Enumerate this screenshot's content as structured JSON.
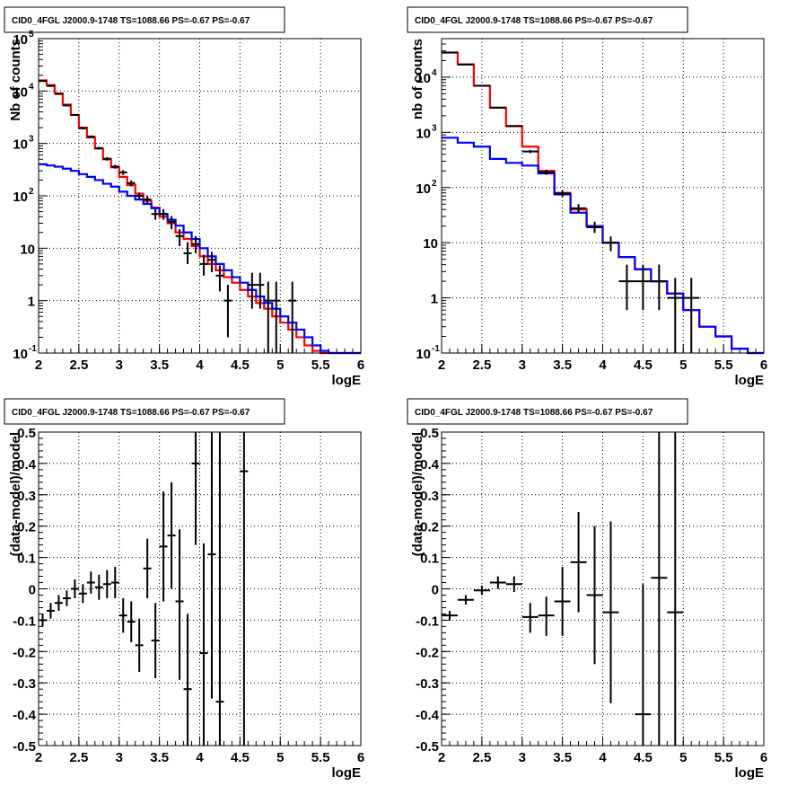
{
  "chart_data": [
    {
      "type": "line",
      "title": "CID0_4FGL J2000.9-1748 TS=1088.66 PS=-0.67 PS=-0.67",
      "xlabel": "logE",
      "ylabel": "Nb of counts",
      "xlim": [
        2,
        6
      ],
      "ylim": [
        0.1,
        100000
      ],
      "ylog": true,
      "grid": true,
      "xticks": [
        "2",
        "2.5",
        "3",
        "3.5",
        "4",
        "4.5",
        "5",
        "5.5",
        "6"
      ],
      "yticks": [
        {
          "base": "10",
          "exp": "-1"
        },
        {
          "base": "1",
          "exp": ""
        },
        {
          "base": "10",
          "exp": ""
        },
        {
          "base": "10",
          "exp": "2"
        },
        {
          "base": "10",
          "exp": "3"
        },
        {
          "base": "10",
          "exp": "4"
        },
        {
          "base": "10",
          "exp": "5"
        }
      ],
      "bin_edges": [
        2.0,
        2.1,
        2.2,
        2.3,
        2.4,
        2.5,
        2.6,
        2.7,
        2.8,
        2.9,
        3.0,
        3.1,
        3.2,
        3.3,
        3.4,
        3.5,
        3.6,
        3.7,
        3.8,
        3.9,
        4.0,
        4.1,
        4.2,
        4.3,
        4.4,
        4.5,
        4.6,
        4.7,
        4.8,
        4.9,
        5.0,
        5.1,
        5.2,
        5.3,
        5.4,
        5.5,
        5.6,
        5.7,
        5.8,
        5.9,
        6.0
      ],
      "series": [
        {
          "color": "#ff0000",
          "values": [
            16000,
            13000,
            9000,
            5500,
            3500,
            2000,
            1300,
            800,
            500,
            350,
            230,
            160,
            110,
            80,
            60,
            40,
            30,
            20,
            15,
            11,
            7,
            5,
            3.8,
            2.8,
            2.2,
            1.6,
            1.2,
            0.9,
            0.7,
            0.5,
            0.38,
            0.28,
            0.2,
            0.14,
            0.11,
            0.1,
            0.1,
            0.1,
            0.1,
            0.1
          ]
        },
        {
          "color": "#0000ff",
          "values": [
            400,
            380,
            360,
            330,
            300,
            260,
            230,
            200,
            170,
            150,
            120,
            100,
            85,
            70,
            58,
            45,
            35,
            27,
            20,
            15,
            10,
            7,
            5,
            3.8,
            2.8,
            2.2,
            1.6,
            1.2,
            0.9,
            0.7,
            0.5,
            0.38,
            0.28,
            0.2,
            0.14,
            0.11,
            0.1,
            0.1,
            0.1,
            0.1
          ]
        }
      ],
      "points": [
        {
          "x": 2.05,
          "y": 15500,
          "ylo": 15200,
          "yhi": 15800
        },
        {
          "x": 2.15,
          "y": 12500,
          "ylo": 12200,
          "yhi": 12800
        },
        {
          "x": 2.25,
          "y": 8800,
          "ylo": 8600,
          "yhi": 9000
        },
        {
          "x": 2.35,
          "y": 5300,
          "ylo": 5150,
          "yhi": 5450
        },
        {
          "x": 2.45,
          "y": 3500,
          "ylo": 3380,
          "yhi": 3620
        },
        {
          "x": 2.55,
          "y": 1950,
          "ylo": 1860,
          "yhi": 2040
        },
        {
          "x": 2.65,
          "y": 1350,
          "ylo": 1280,
          "yhi": 1420
        },
        {
          "x": 2.75,
          "y": 810,
          "ylo": 760,
          "yhi": 860
        },
        {
          "x": 2.85,
          "y": 510,
          "ylo": 470,
          "yhi": 550
        },
        {
          "x": 2.95,
          "y": 360,
          "ylo": 330,
          "yhi": 390
        },
        {
          "x": 3.05,
          "y": 280,
          "ylo": 250,
          "yhi": 310
        },
        {
          "x": 3.15,
          "y": 175,
          "ylo": 152,
          "yhi": 198
        },
        {
          "x": 3.25,
          "y": 100,
          "ylo": 84,
          "yhi": 116
        },
        {
          "x": 3.35,
          "y": 85,
          "ylo": 70,
          "yhi": 100
        },
        {
          "x": 3.45,
          "y": 45,
          "ylo": 35,
          "yhi": 56
        },
        {
          "x": 3.55,
          "y": 45,
          "ylo": 35,
          "yhi": 56
        },
        {
          "x": 3.65,
          "y": 32,
          "ylo": 23,
          "yhi": 41
        },
        {
          "x": 3.75,
          "y": 17,
          "ylo": 11,
          "yhi": 23
        },
        {
          "x": 3.85,
          "y": 8,
          "ylo": 5,
          "yhi": 13
        },
        {
          "x": 3.95,
          "y": 12,
          "ylo": 8,
          "yhi": 17
        },
        {
          "x": 4.05,
          "y": 5,
          "ylo": 3,
          "yhi": 7.5
        },
        {
          "x": 4.15,
          "y": 6,
          "ylo": 3.5,
          "yhi": 8.5
        },
        {
          "x": 4.25,
          "y": 3,
          "ylo": 1.5,
          "yhi": 4.7
        },
        {
          "x": 4.35,
          "y": 1,
          "ylo": 0.2,
          "yhi": 2
        },
        {
          "x": 4.65,
          "y": 2,
          "ylo": 0.7,
          "yhi": 3.4
        },
        {
          "x": 4.75,
          "y": 2,
          "ylo": 0.7,
          "yhi": 3.4
        },
        {
          "x": 4.85,
          "y": 1,
          "ylo": 0.1,
          "yhi": 2.3
        },
        {
          "x": 4.95,
          "y": 1,
          "ylo": 0.1,
          "yhi": 2.3
        },
        {
          "x": 5.15,
          "y": 1,
          "ylo": 0.1,
          "yhi": 2.3
        }
      ],
      "point_xerr": 0.05
    },
    {
      "type": "line",
      "title": "CID0_4FGL J2000.9-1748 TS=1088.66 PS=-0.67 PS=-0.67",
      "xlabel": "logE",
      "ylabel": "nb of counts",
      "xlim": [
        2,
        6
      ],
      "ylim": [
        0.1,
        50000
      ],
      "ylog": true,
      "grid": true,
      "xticks": [
        "2",
        "2.5",
        "3",
        "3.5",
        "4",
        "4.5",
        "5",
        "5.5",
        "6"
      ],
      "yticks": [
        {
          "base": "10",
          "exp": "-1"
        },
        {
          "base": "1",
          "exp": ""
        },
        {
          "base": "10",
          "exp": ""
        },
        {
          "base": "10",
          "exp": "2"
        },
        {
          "base": "10",
          "exp": "3"
        },
        {
          "base": "10",
          "exp": "4"
        }
      ],
      "bin_edges": [
        2.0,
        2.2,
        2.4,
        2.6,
        2.8,
        3.0,
        3.2,
        3.4,
        3.6,
        3.8,
        4.0,
        4.2,
        4.4,
        4.6,
        4.8,
        5.0,
        5.2,
        5.4,
        5.6,
        5.8,
        6.0
      ],
      "series": [
        {
          "color": "#ff0000",
          "values": [
            28000,
            17000,
            7000,
            2800,
            1300,
            550,
            200,
            80,
            40,
            20,
            10,
            5.5,
            3.3,
            2,
            1.2,
            0.6,
            0.3,
            0.2,
            0.12,
            0.1
          ]
        },
        {
          "color": "#0000ff",
          "values": [
            800,
            650,
            550,
            330,
            280,
            250,
            180,
            75,
            35,
            20,
            10,
            5.5,
            3.3,
            2,
            1.2,
            0.6,
            0.3,
            0.2,
            0.12,
            0.1
          ]
        }
      ],
      "points": [
        {
          "x": 2.1,
          "y": 28000,
          "ylo": 27500,
          "yhi": 28500
        },
        {
          "x": 2.3,
          "y": 17000,
          "ylo": 16500,
          "yhi": 17500
        },
        {
          "x": 2.5,
          "y": 7000,
          "ylo": 6800,
          "yhi": 7200
        },
        {
          "x": 2.7,
          "y": 2800,
          "ylo": 2700,
          "yhi": 2900
        },
        {
          "x": 2.9,
          "y": 1300,
          "ylo": 1250,
          "yhi": 1350
        },
        {
          "x": 3.1,
          "y": 450,
          "ylo": 420,
          "yhi": 480
        },
        {
          "x": 3.3,
          "y": 190,
          "ylo": 170,
          "yhi": 210
        },
        {
          "x": 3.5,
          "y": 78,
          "ylo": 68,
          "yhi": 88
        },
        {
          "x": 3.7,
          "y": 42,
          "ylo": 35,
          "yhi": 50
        },
        {
          "x": 3.9,
          "y": 19,
          "ylo": 15,
          "yhi": 24
        },
        {
          "x": 4.1,
          "y": 10,
          "ylo": 7,
          "yhi": 13
        },
        {
          "x": 4.3,
          "y": 2,
          "ylo": 0.6,
          "yhi": 4
        },
        {
          "x": 4.5,
          "y": 2,
          "ylo": 0.6,
          "yhi": 4
        },
        {
          "x": 4.7,
          "y": 2,
          "ylo": 0.6,
          "yhi": 4
        },
        {
          "x": 4.9,
          "y": 1,
          "ylo": 0.1,
          "yhi": 2.3
        },
        {
          "x": 5.1,
          "y": 1,
          "ylo": 0.1,
          "yhi": 2.3
        }
      ],
      "point_xerr": 0.1
    },
    {
      "type": "scatter",
      "title": "CID0_4FGL J2000.9-1748 TS=1088.66 PS=-0.67 PS=-0.67",
      "xlabel": "logE",
      "ylabel": "(data-model)/model",
      "xlim": [
        2,
        6
      ],
      "ylim": [
        -0.5,
        0.5
      ],
      "ylog": false,
      "grid": true,
      "xticks": [
        "2",
        "2.5",
        "3",
        "3.5",
        "4",
        "4.5",
        "5",
        "5.5",
        "6"
      ],
      "yticks": [
        "-0.5",
        "-0.4",
        "-0.3",
        "-0.2",
        "-0.1",
        "0",
        "0.1",
        "0.2",
        "0.3",
        "0.4",
        "0.5"
      ],
      "points": [
        {
          "x": 2.05,
          "y": -0.1,
          "ylo": -0.12,
          "yhi": -0.08
        },
        {
          "x": 2.15,
          "y": -0.07,
          "ylo": -0.095,
          "yhi": -0.045
        },
        {
          "x": 2.25,
          "y": -0.045,
          "ylo": -0.07,
          "yhi": -0.02
        },
        {
          "x": 2.35,
          "y": -0.03,
          "ylo": -0.055,
          "yhi": -0.005
        },
        {
          "x": 2.45,
          "y": 0.0,
          "ylo": -0.03,
          "yhi": 0.03
        },
        {
          "x": 2.55,
          "y": -0.015,
          "ylo": -0.045,
          "yhi": 0.015
        },
        {
          "x": 2.65,
          "y": 0.02,
          "ylo": -0.015,
          "yhi": 0.055
        },
        {
          "x": 2.75,
          "y": 0.005,
          "ylo": -0.035,
          "yhi": 0.045
        },
        {
          "x": 2.85,
          "y": 0.015,
          "ylo": -0.03,
          "yhi": 0.06
        },
        {
          "x": 2.95,
          "y": 0.02,
          "ylo": -0.03,
          "yhi": 0.07
        },
        {
          "x": 3.05,
          "y": -0.085,
          "ylo": -0.14,
          "yhi": -0.03
        },
        {
          "x": 3.15,
          "y": -0.105,
          "ylo": -0.17,
          "yhi": -0.04
        },
        {
          "x": 3.25,
          "y": -0.18,
          "ylo": -0.265,
          "yhi": -0.095
        },
        {
          "x": 3.35,
          "y": 0.065,
          "ylo": -0.03,
          "yhi": 0.16
        },
        {
          "x": 3.45,
          "y": -0.165,
          "ylo": -0.285,
          "yhi": -0.045
        },
        {
          "x": 3.55,
          "y": 0.135,
          "ylo": -0.04,
          "yhi": 0.31
        },
        {
          "x": 3.65,
          "y": 0.17,
          "ylo": 0.0,
          "yhi": 0.34
        },
        {
          "x": 3.75,
          "y": -0.04,
          "ylo": -0.29,
          "yhi": 0.19
        },
        {
          "x": 3.85,
          "y": -0.32,
          "ylo": -0.5,
          "yhi": -0.08
        },
        {
          "x": 3.95,
          "y": 0.4,
          "ylo": 0.14,
          "yhi": 0.5
        },
        {
          "x": 4.05,
          "y": -0.205,
          "ylo": -0.5,
          "yhi": 0.145
        },
        {
          "x": 4.15,
          "y": 0.11,
          "ylo": -0.35,
          "yhi": 0.5
        },
        {
          "x": 4.25,
          "y": -0.36,
          "ylo": -0.5,
          "yhi": 0.5
        },
        {
          "x": 4.55,
          "y": 0.375,
          "ylo": -0.5,
          "yhi": 0.5
        }
      ],
      "point_xerr": 0.05
    },
    {
      "type": "scatter",
      "title": "CID0_4FGL J2000.9-1748 TS=1088.66 PS=-0.67 PS=-0.67",
      "xlabel": "logE",
      "ylabel": "(data-model)/model",
      "xlim": [
        2,
        6
      ],
      "ylim": [
        -0.5,
        0.5
      ],
      "ylog": false,
      "grid": true,
      "xticks": [
        "2",
        "2.5",
        "3",
        "3.5",
        "4",
        "4.5",
        "5",
        "5.5",
        "6"
      ],
      "yticks": [
        "-0.5",
        "-0.4",
        "-0.3",
        "-0.2",
        "-0.1",
        "0",
        "0.1",
        "0.2",
        "0.3",
        "0.4",
        "0.5"
      ],
      "points": [
        {
          "x": 2.1,
          "y": -0.085,
          "ylo": -0.1,
          "yhi": -0.07
        },
        {
          "x": 2.3,
          "y": -0.035,
          "ylo": -0.05,
          "yhi": -0.02
        },
        {
          "x": 2.5,
          "y": -0.005,
          "ylo": -0.02,
          "yhi": 0.01
        },
        {
          "x": 2.7,
          "y": 0.02,
          "ylo": 0.0,
          "yhi": 0.04
        },
        {
          "x": 2.9,
          "y": 0.015,
          "ylo": -0.01,
          "yhi": 0.04
        },
        {
          "x": 3.1,
          "y": -0.09,
          "ylo": -0.14,
          "yhi": -0.045
        },
        {
          "x": 3.3,
          "y": -0.085,
          "ylo": -0.15,
          "yhi": -0.025
        },
        {
          "x": 3.5,
          "y": -0.04,
          "ylo": -0.15,
          "yhi": 0.07
        },
        {
          "x": 3.7,
          "y": 0.085,
          "ylo": -0.075,
          "yhi": 0.245
        },
        {
          "x": 3.9,
          "y": -0.02,
          "ylo": -0.24,
          "yhi": 0.2
        },
        {
          "x": 4.1,
          "y": -0.075,
          "ylo": -0.365,
          "yhi": 0.215
        },
        {
          "x": 4.5,
          "y": -0.4,
          "ylo": -0.5,
          "yhi": 0.015
        },
        {
          "x": 4.7,
          "y": 0.035,
          "ylo": -0.5,
          "yhi": 0.5
        },
        {
          "x": 4.9,
          "y": -0.075,
          "ylo": -0.5,
          "yhi": 0.5
        }
      ],
      "point_xerr": 0.1
    }
  ]
}
